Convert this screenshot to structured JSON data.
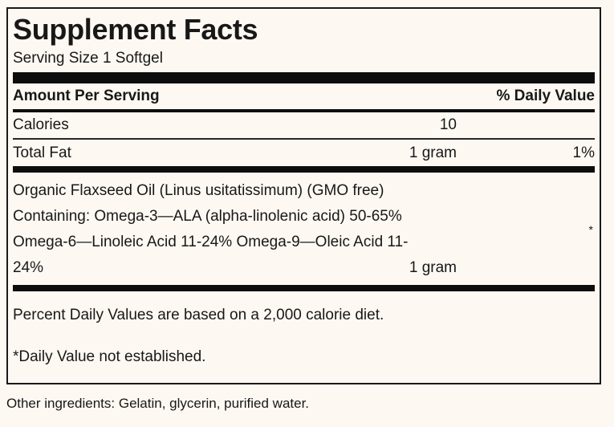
{
  "colors": {
    "background": "#fdf8f2",
    "ink": "#181818",
    "bar": "#0d0d0d"
  },
  "label": {
    "title": "Supplement Facts",
    "serving_size": "Serving Size 1 Softgel",
    "header": {
      "amount_per_serving": "Amount Per Serving",
      "daily_value": "% Daily Value"
    },
    "rows": [
      {
        "name": "Calories",
        "amount": "10",
        "dv": ""
      },
      {
        "name": "Total Fat",
        "amount": "1 gram",
        "dv": "1%"
      }
    ],
    "ingredient": {
      "lines": [
        "Organic Flaxseed Oil (Linus usitatissimum) (GMO free)",
        "Containing: Omega-3—ALA (alpha-linolenic acid) 50-65%",
        "Omega-6—Linoleic Acid 11-24% Omega-9—Oleic Acid 11-",
        "24%"
      ],
      "amount": "1 gram",
      "dv_mark": "*"
    },
    "footnotes": {
      "percent_daily": "Percent Daily Values are based on a 2,000 calorie diet.",
      "not_established": "*Daily Value not established."
    }
  },
  "footer": {
    "other_ingredients": "Other ingredients: Gelatin, glycerin, purified water."
  }
}
